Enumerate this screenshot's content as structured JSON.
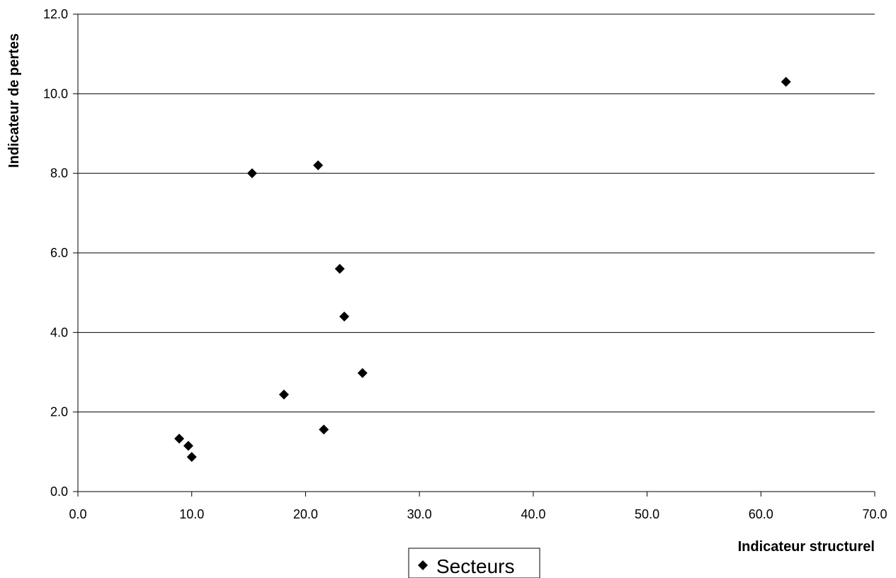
{
  "chart_data": {
    "type": "scatter",
    "xlabel": "Indicateur structurel",
    "ylabel": "Indicateur de pertes",
    "xlim": [
      0,
      70
    ],
    "ylim": [
      0,
      12
    ],
    "x_ticks": [
      "0.0",
      "10.0",
      "20.0",
      "30.0",
      "40.0",
      "50.0",
      "60.0",
      "70.0"
    ],
    "y_ticks": [
      "0.0",
      "2.0",
      "4.0",
      "6.0",
      "8.0",
      "10.0",
      "12.0"
    ],
    "grid": "horizontal",
    "legend_position": "bottom",
    "marker": "diamond",
    "series": [
      {
        "name": "Secteurs",
        "color": "#000000",
        "points": [
          {
            "x": 8.9,
            "y": 1.33
          },
          {
            "x": 9.7,
            "y": 1.15
          },
          {
            "x": 10.0,
            "y": 0.87
          },
          {
            "x": 15.3,
            "y": 8.0
          },
          {
            "x": 18.1,
            "y": 2.44
          },
          {
            "x": 21.1,
            "y": 8.2
          },
          {
            "x": 21.6,
            "y": 1.56
          },
          {
            "x": 23.0,
            "y": 5.6
          },
          {
            "x": 23.4,
            "y": 4.4
          },
          {
            "x": 25.0,
            "y": 2.98
          },
          {
            "x": 62.2,
            "y": 10.3
          }
        ]
      }
    ]
  }
}
